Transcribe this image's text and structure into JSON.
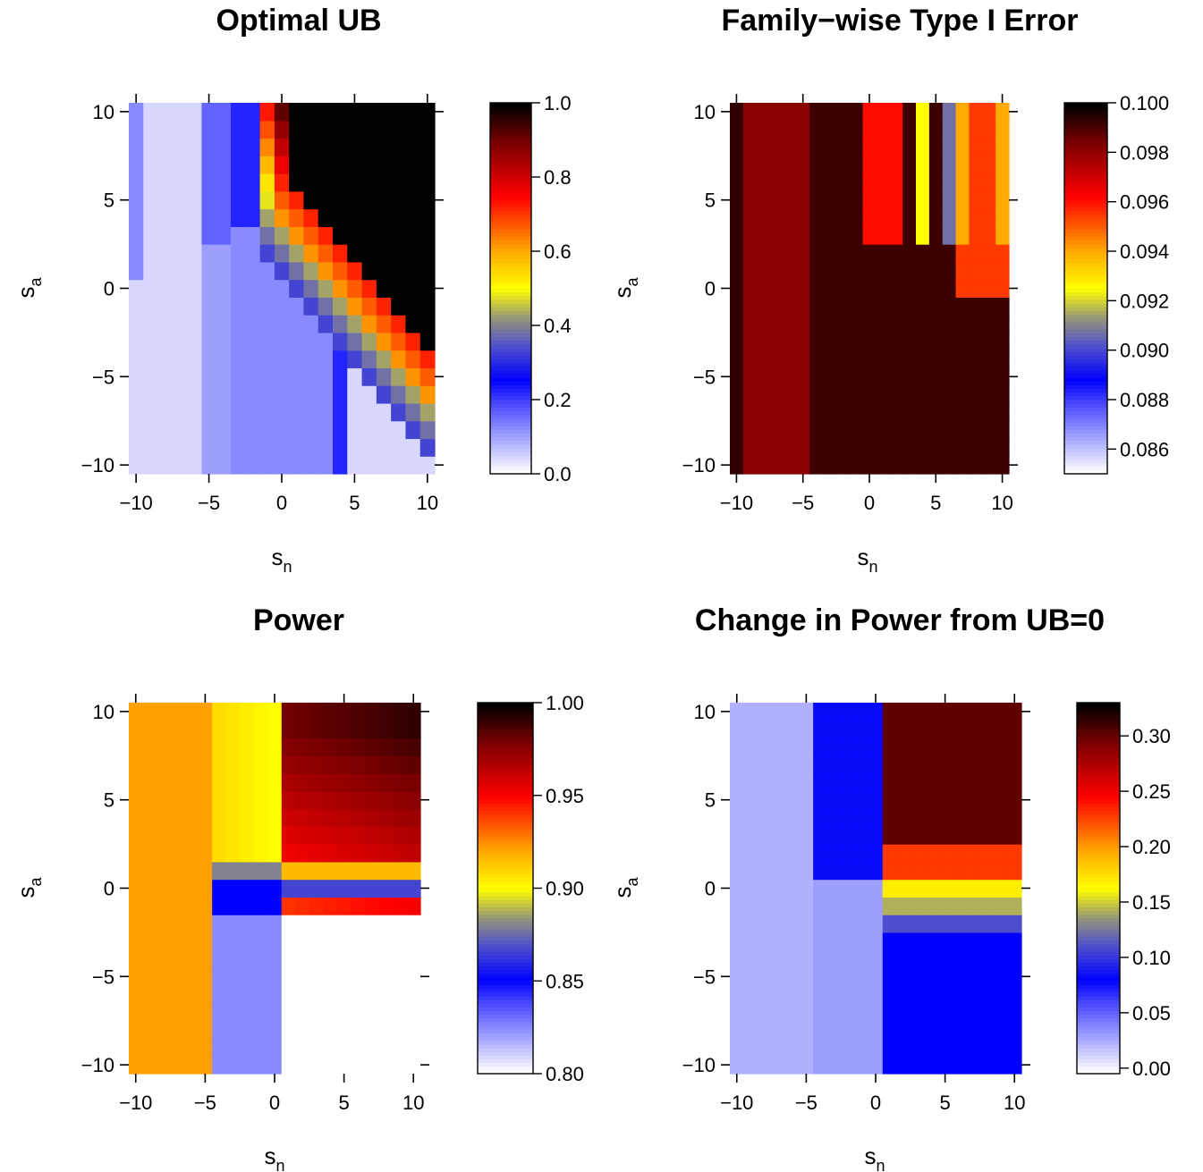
{
  "chart_data": [
    {
      "type": "heatmap",
      "title": "Optimal UB",
      "xlabel": {
        "main": "s",
        "sub": "n"
      },
      "ylabel": {
        "main": "s",
        "sub": "a"
      },
      "x_ticks": [
        "−10",
        "−5",
        "0",
        "5",
        "10"
      ],
      "y_ticks": [
        "−10",
        "−5",
        "0",
        "5",
        "10"
      ],
      "x_range": [
        -10,
        10
      ],
      "y_range": [
        -10,
        10
      ],
      "colorbar": {
        "min": 0.0,
        "max": 1.0,
        "ticks": [
          "0.0",
          "0.2",
          "0.4",
          "0.6",
          "0.8",
          "1.0"
        ],
        "palette": "blue-white-to-heat"
      },
      "description_of_pattern": {
        "below_diag": 0.0,
        "diag_band": [
          0.2,
          0.6
        ],
        "upper_right": 1.0
      }
    },
    {
      "type": "heatmap",
      "title": "Family−wise Type I Error",
      "xlabel": {
        "main": "s",
        "sub": "n"
      },
      "ylabel": {
        "main": "s",
        "sub": "a"
      },
      "x_ticks": [
        "−10",
        "−5",
        "0",
        "5",
        "10"
      ],
      "y_ticks": [
        "−10",
        "−5",
        "0",
        "5",
        "10"
      ],
      "x_range": [
        -10,
        10
      ],
      "y_range": [
        -10,
        10
      ],
      "colorbar": {
        "min": 0.085,
        "max": 0.1,
        "ticks": [
          "0.086",
          "0.088",
          "0.090",
          "0.092",
          "0.094",
          "0.096",
          "0.098",
          "0.100"
        ],
        "palette": "blue-white-to-heat"
      }
    },
    {
      "type": "heatmap",
      "title": "Power",
      "xlabel": {
        "main": "s",
        "sub": "n"
      },
      "ylabel": {
        "main": "s",
        "sub": "a"
      },
      "x_ticks": [
        "−10",
        "−5",
        "0",
        "5",
        "10"
      ],
      "y_ticks": [
        "−10",
        "−5",
        "0",
        "5",
        "10"
      ],
      "x_range": [
        -10,
        10
      ],
      "y_range": [
        -10,
        10
      ],
      "colorbar": {
        "min": 0.8,
        "max": 1.0,
        "ticks": [
          "0.80",
          "0.85",
          "0.90",
          "0.95",
          "1.00"
        ],
        "palette": "blue-white-to-heat"
      }
    },
    {
      "type": "heatmap",
      "title": "Change in Power from UB=0",
      "xlabel": {
        "main": "s",
        "sub": "n"
      },
      "ylabel": {
        "main": "s",
        "sub": "a"
      },
      "x_ticks": [
        "−10",
        "−5",
        "0",
        "5",
        "10"
      ],
      "y_ticks": [
        "−10",
        "−5",
        "0",
        "5",
        "10"
      ],
      "x_range": [
        -10,
        10
      ],
      "y_range": [
        -10,
        10
      ],
      "colorbar": {
        "min": -0.005,
        "max": 0.33,
        "ticks": [
          "0.00",
          "0.05",
          "0.10",
          "0.15",
          "0.20",
          "0.25",
          "0.30"
        ],
        "palette": "blue-white-to-heat"
      }
    }
  ]
}
